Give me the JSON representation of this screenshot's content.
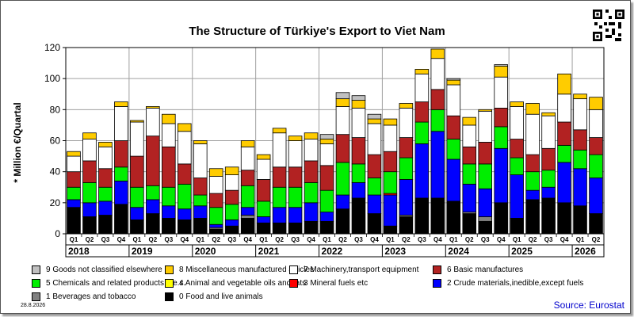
{
  "page": {
    "date_stamp": "28.8.2026",
    "source": "Source: Eurostat"
  },
  "chart_data": {
    "type": "bar",
    "stacked": true,
    "title": "The Structure of Türkiye's Export to Viet Nam",
    "xlabel": "",
    "ylabel": "* Million €/Quartal",
    "ylim": [
      0,
      120
    ],
    "yticks": [
      0,
      20,
      40,
      60,
      80,
      100,
      120
    ],
    "grid": true,
    "legend_position": "bottom",
    "categories": [
      "Q1",
      "Q2",
      "Q3",
      "Q4",
      "Q1",
      "Q2",
      "Q3",
      "Q4",
      "Q1",
      "Q2",
      "Q3",
      "Q4",
      "Q1",
      "Q2",
      "Q3",
      "Q4",
      "Q1",
      "Q2",
      "Q3",
      "Q4",
      "Q1",
      "Q2",
      "Q3",
      "Q4",
      "Q1",
      "Q2",
      "Q3",
      "Q4",
      "Q1",
      "Q2",
      "Q3",
      "Q4",
      "Q1",
      "Q2"
    ],
    "year_labels": [
      {
        "label": "2018",
        "start": 0
      },
      {
        "label": "2019",
        "start": 4
      },
      {
        "label": "2020",
        "start": 8
      },
      {
        "label": "2021",
        "start": 12
      },
      {
        "label": "2022",
        "start": 16
      },
      {
        "label": "2023",
        "start": 20
      },
      {
        "label": "2024",
        "start": 24
      },
      {
        "label": "2025",
        "start": 28
      },
      {
        "label": "2026",
        "start": 32
      }
    ],
    "series": [
      {
        "name": "0 Food and live animals",
        "color": "#000000",
        "values": [
          17,
          11,
          12,
          19,
          9,
          13,
          10,
          9,
          10,
          3,
          5,
          10,
          7,
          7,
          7,
          8,
          8,
          16,
          23,
          13,
          5,
          11,
          23,
          23,
          21,
          13,
          8,
          20,
          10,
          22,
          23,
          20,
          18,
          13
        ]
      },
      {
        "name": "1 Beverages and tobacco",
        "color": "#808080",
        "values": [
          0,
          0,
          0,
          0,
          0,
          0,
          0,
          0,
          0,
          1,
          0,
          2,
          0,
          0,
          0,
          0,
          0,
          0,
          0,
          0,
          0,
          1,
          0,
          0,
          0,
          1,
          3,
          0,
          0,
          0,
          0,
          0,
          0,
          0
        ]
      },
      {
        "name": "2 Crude materials,inedible,except fuels",
        "color": "#0000ff",
        "values": [
          5,
          9,
          9,
          15,
          8,
          9,
          8,
          7,
          8,
          2,
          4,
          5,
          4,
          10,
          10,
          12,
          6,
          9,
          10,
          12,
          20,
          23,
          35,
          43,
          27,
          18,
          18,
          35,
          28,
          6,
          7,
          26,
          24,
          23
        ]
      },
      {
        "name": "3 Mineral fuels etc",
        "color": "#ff0000",
        "values": [
          0,
          0,
          0,
          0,
          0,
          0,
          0,
          0,
          0,
          0,
          0,
          0,
          0,
          0,
          0,
          0,
          0,
          0,
          0,
          0,
          1,
          0,
          0,
          0,
          0,
          0,
          0,
          0,
          0,
          0,
          0,
          0,
          0,
          0
        ]
      },
      {
        "name": "4 Animal and vegetable oils and fats",
        "color": "#ffff00",
        "values": [
          0,
          0,
          0,
          0,
          0,
          0,
          0,
          0,
          0,
          0,
          0,
          0,
          0,
          0,
          0,
          0,
          0,
          0,
          0,
          0,
          0,
          0,
          0,
          0,
          0,
          0,
          0,
          0,
          0,
          0,
          0,
          0,
          0,
          0
        ]
      },
      {
        "name": "5 Chemicals and related products,n.e.s.",
        "color": "#00ee00",
        "values": [
          8,
          13,
          9,
          9,
          13,
          9,
          12,
          16,
          7,
          11,
          10,
          14,
          10,
          13,
          13,
          13,
          14,
          21,
          12,
          11,
          14,
          14,
          14,
          14,
          13,
          13,
          16,
          14,
          11,
          12,
          11,
          11,
          12,
          15
        ]
      },
      {
        "name": "6 Basic manufactures",
        "color": "#b22222",
        "values": [
          10,
          14,
          12,
          17,
          20,
          32,
          26,
          13,
          11,
          9,
          9,
          10,
          14,
          13,
          13,
          14,
          16,
          18,
          17,
          15,
          13,
          13,
          13,
          13,
          15,
          11,
          14,
          12,
          12,
          11,
          14,
          15,
          13,
          11
        ]
      },
      {
        "name": "7 Machinery,transport equipment",
        "color": "#ffffff",
        "values": [
          10,
          14,
          14,
          22,
          22,
          18,
          15,
          21,
          22,
          11,
          10,
          15,
          13,
          22,
          17,
          14,
          14,
          18,
          19,
          20,
          17,
          19,
          18,
          20,
          20,
          14,
          20,
          20,
          21,
          26,
          21,
          18,
          20,
          18
        ]
      },
      {
        "name": "8 Miscellaneous manufactured articles",
        "color": "#ffcc00",
        "values": [
          3,
          4,
          3,
          3,
          1,
          1,
          6,
          5,
          2,
          5,
          5,
          4,
          3,
          3,
          3,
          4,
          3,
          5,
          5,
          3,
          4,
          3,
          3,
          6,
          3,
          5,
          1,
          7,
          3,
          7,
          2,
          13,
          3,
          8
        ]
      },
      {
        "name": "9 Goods not classified elsewhere",
        "color": "#c0c0c0",
        "values": [
          0,
          0,
          0,
          0,
          0,
          0,
          0,
          0,
          0,
          0,
          0,
          0,
          0,
          0,
          0,
          0,
          3,
          4,
          3,
          3,
          0,
          0,
          0,
          0,
          1,
          0,
          0,
          1,
          0,
          0,
          0,
          0,
          0,
          0
        ]
      }
    ]
  },
  "legend": [
    {
      "key": "9",
      "label": "9 Goods not classified elsewhere",
      "color": "#c0c0c0"
    },
    {
      "key": "8",
      "label": "8 Miscellaneous manufactured articles",
      "color": "#ffcc00"
    },
    {
      "key": "7",
      "label": "7 Machinery,transport equipment",
      "color": "#ffffff"
    },
    {
      "key": "6",
      "label": "6 Basic manufactures",
      "color": "#b22222"
    },
    {
      "key": "5",
      "label": "5 Chemicals and related products,n.e.s.",
      "color": "#00ee00"
    },
    {
      "key": "4",
      "label": "4 Animal and vegetable oils and fats",
      "color": "#ffff00"
    },
    {
      "key": "3",
      "label": "3 Mineral fuels etc",
      "color": "#ff0000"
    },
    {
      "key": "2",
      "label": "2 Crude materials,inedible,except fuels",
      "color": "#0000ff"
    },
    {
      "key": "1",
      "label": "1 Beverages and tobacco",
      "color": "#808080"
    },
    {
      "key": "0",
      "label": "0 Food and live animals",
      "color": "#000000"
    }
  ]
}
